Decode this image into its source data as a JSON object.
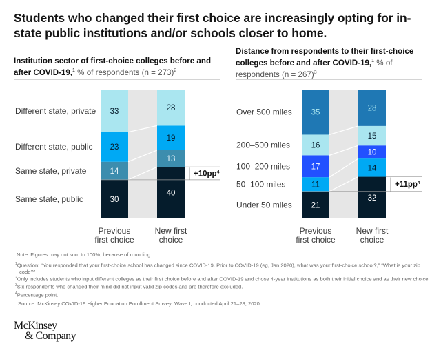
{
  "title": "Students who changed their first choice are increasingly opting for in-state public institutions and/or schools closer to home.",
  "colors": {
    "navy": "#051c2c",
    "steel": "#3c8dae",
    "cyan": "#00a9f4",
    "light_cyan": "#aae6f0",
    "royal": "#2251ff",
    "ocean": "#1f78b4",
    "connector_band": "#e6e6e6"
  },
  "chart_data": [
    {
      "type": "bar",
      "stacked": true,
      "title_bold": "Institution sector of first-choice colleges before and after COVID-19,",
      "title_sup": "1",
      "title_light": " % of respondents (n = 273)",
      "title_light_sup": "2",
      "categories": [
        "Previous first choice",
        "New first choice"
      ],
      "category_lines": [
        [
          "Previous",
          "first choice"
        ],
        [
          "New first",
          "choice"
        ]
      ],
      "series": [
        {
          "name": "Same state, public",
          "values": [
            30,
            40
          ],
          "color": "#051c2c",
          "text_color": "#ffffff"
        },
        {
          "name": "Same state, private",
          "values": [
            14,
            13
          ],
          "color": "#3c8dae",
          "text_color": "#e8f4fa"
        },
        {
          "name": "Different state, public",
          "values": [
            23,
            19
          ],
          "color": "#00a9f4",
          "text_color": "#051c2c"
        },
        {
          "name": "Different state, private",
          "values": [
            33,
            28
          ],
          "color": "#aae6f0",
          "text_color": "#051c2c"
        }
      ],
      "annotation": {
        "text": "+10pp",
        "sup": "4",
        "from_series": "Same state, public",
        "delta": 10
      },
      "ylim": [
        0,
        100
      ]
    },
    {
      "type": "bar",
      "stacked": true,
      "title_bold": "Distance from respondents to their first-choice colleges before and after COVID-19,",
      "title_sup": "1",
      "title_light": " % of respondents (n = 267)",
      "title_light_sup": "3",
      "categories": [
        "Previous first choice",
        "New first choice"
      ],
      "category_lines": [
        [
          "Previous",
          "first choice"
        ],
        [
          "New first",
          "choice"
        ]
      ],
      "series": [
        {
          "name": "Under 50 miles",
          "values": [
            21,
            32
          ],
          "color": "#051c2c",
          "text_color": "#ffffff"
        },
        {
          "name": "50–100 miles",
          "values": [
            11,
            14
          ],
          "color": "#00a9f4",
          "text_color": "#051c2c"
        },
        {
          "name": "100–200 miles",
          "values": [
            17,
            10
          ],
          "color": "#2251ff",
          "text_color": "#ffffff"
        },
        {
          "name": "200–500 miles",
          "values": [
            16,
            15
          ],
          "color": "#aae6f0",
          "text_color": "#051c2c"
        },
        {
          "name": "Over 500 miles",
          "values": [
            35,
            28
          ],
          "color": "#1f78b4",
          "text_color": "#aae6f0"
        }
      ],
      "annotation": {
        "text": "+11pp",
        "sup": "4",
        "from_series": "Under 50 miles",
        "delta": 11
      },
      "ylim": [
        0,
        100
      ]
    }
  ],
  "notes": {
    "note": "Note: Figures may not sum to 100%, because of rounding.",
    "footnotes": [
      {
        "mark": "1",
        "text": "Question: “You responded that your first-choice school has changed since COVID-19. Prior to COVID-19 (eg, Jan 2020), what was your first-choice school?,” “What is your zip code?”"
      },
      {
        "mark": "2",
        "text": "Only includes students who input different colleges as their first choice before and after COVID-19 and chose 4-year institutions as both their initial choice and as their new choice."
      },
      {
        "mark": "3",
        "text": "Six respondents who changed their mind did not input valid zip codes and are therefore excluded."
      },
      {
        "mark": "4",
        "text": "Percentage point."
      }
    ],
    "source": "Source: McKinsey COVID-19 Higher Education Enrollment Survey: Wave I, conducted April 21–28, 2020"
  },
  "logo": {
    "line1": "McKinsey",
    "line2": "& Company"
  }
}
